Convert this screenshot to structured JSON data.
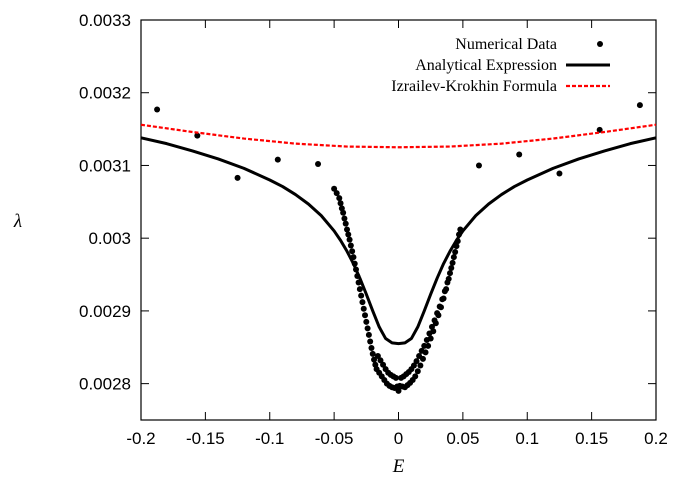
{
  "chart_data": {
    "type": "scatter",
    "title": "",
    "xlabel": "E",
    "ylabel": "λ",
    "xlim": [
      -0.2,
      0.2
    ],
    "ylim": [
      0.00275,
      0.0033
    ],
    "x_ticks": [
      -0.2,
      -0.15,
      -0.1,
      -0.05,
      0,
      0.05,
      0.1,
      0.15,
      0.2
    ],
    "x_tick_labels": [
      "-0.2",
      "-0.15",
      "-0.1",
      "-0.05",
      "0",
      "0.05",
      "0.1",
      "0.15",
      "0.2"
    ],
    "y_ticks": [
      0.0028,
      0.0029,
      0.003,
      0.0031,
      0.0032,
      0.0033
    ],
    "y_tick_labels": [
      "0.0028",
      "0.0029",
      "0.003",
      "0.0031",
      "0.0032",
      "0.0033"
    ],
    "grid": false,
    "legend_position": "top-right",
    "series": [
      {
        "name": "Numerical Data",
        "kind": "points",
        "color": "#000000",
        "x": [
          -0.1875,
          -0.15625,
          -0.125,
          -0.09375,
          -0.0625,
          -0.05,
          -0.048,
          -0.046,
          -0.045,
          -0.044,
          -0.043,
          -0.042,
          -0.041,
          -0.04,
          -0.039,
          -0.038,
          -0.037,
          -0.036,
          -0.035,
          -0.034,
          -0.033,
          -0.032,
          -0.031,
          -0.03,
          -0.029,
          -0.028,
          -0.027,
          -0.026,
          -0.025,
          -0.024,
          -0.023,
          -0.022,
          -0.021,
          -0.02,
          -0.019,
          -0.018,
          -0.017,
          -0.016,
          -0.015,
          -0.014,
          -0.013,
          -0.012,
          -0.011,
          -0.01,
          -0.009,
          -0.008,
          -0.007,
          -0.006,
          -0.005,
          -0.004,
          -0.003,
          -0.002,
          -0.001,
          0,
          0.001,
          0.002,
          0.003,
          0.004,
          0.005,
          0.006,
          0.007,
          0.008,
          0.009,
          0.01,
          0.011,
          0.012,
          0.013,
          0.014,
          0.015,
          0.016,
          0.017,
          0.018,
          0.019,
          0.02,
          0.021,
          0.022,
          0.023,
          0.024,
          0.025,
          0.026,
          0.027,
          0.028,
          0.029,
          0.03,
          0.031,
          0.032,
          0.033,
          0.034,
          0.035,
          0.036,
          0.037,
          0.038,
          0.039,
          0.04,
          0.041,
          0.042,
          0.043,
          0.044,
          0.045,
          0.046,
          0.047,
          0.048,
          0.0625,
          0.09375,
          0.125,
          0.15625,
          0.1875
        ],
        "y": [
          0.003177,
          0.003141,
          0.003083,
          0.003108,
          0.003102,
          0.003068,
          0.003062,
          0.003055,
          0.003048,
          0.003041,
          0.003035,
          0.003027,
          0.00302,
          0.003012,
          0.003005,
          0.002998,
          0.00299,
          0.002982,
          0.002974,
          0.002965,
          0.002957,
          0.002948,
          0.002939,
          0.00293,
          0.002921,
          0.002912,
          0.002903,
          0.002894,
          0.002885,
          0.002876,
          0.002867,
          0.002858,
          0.002849,
          0.002841,
          0.002833,
          0.002826,
          0.00282,
          0.002838,
          0.002815,
          0.002832,
          0.00281,
          0.002826,
          0.002805,
          0.00282,
          0.0028,
          0.002815,
          0.002797,
          0.002812,
          0.002795,
          0.00281,
          0.002794,
          0.002808,
          0.002796,
          0.00279,
          0.002797,
          0.002808,
          0.002796,
          0.00281,
          0.002795,
          0.002813,
          0.002798,
          0.002816,
          0.002801,
          0.00282,
          0.002805,
          0.002825,
          0.00281,
          0.002831,
          0.002817,
          0.002838,
          0.002825,
          0.002845,
          0.002834,
          0.002852,
          0.002843,
          0.00286,
          0.002852,
          0.002869,
          0.002862,
          0.002878,
          0.002872,
          0.002887,
          0.002883,
          0.002897,
          0.002894,
          0.002906,
          0.002905,
          0.002916,
          0.002917,
          0.002927,
          0.00293,
          0.002939,
          0.002944,
          0.002952,
          0.002959,
          0.002966,
          0.002974,
          0.002981,
          0.002989,
          0.002996,
          0.003005,
          0.003012,
          0.0031,
          0.003115,
          0.003089,
          0.003149,
          0.003183
        ]
      },
      {
        "name": "Analytical Expression",
        "kind": "line",
        "color": "#000000",
        "x": [
          -0.2,
          -0.18,
          -0.16,
          -0.14,
          -0.12,
          -0.1,
          -0.09,
          -0.08,
          -0.07,
          -0.06,
          -0.05,
          -0.045,
          -0.04,
          -0.035,
          -0.03,
          -0.025,
          -0.02,
          -0.015,
          -0.01,
          -0.005,
          0,
          0.005,
          0.01,
          0.015,
          0.02,
          0.025,
          0.03,
          0.035,
          0.04,
          0.045,
          0.05,
          0.06,
          0.07,
          0.08,
          0.09,
          0.1,
          0.12,
          0.14,
          0.16,
          0.18,
          0.2
        ],
        "y": [
          0.003138,
          0.00313,
          0.00312,
          0.003109,
          0.003096,
          0.00308,
          0.003071,
          0.00306,
          0.003047,
          0.003031,
          0.00301,
          0.002997,
          0.002982,
          0.002965,
          0.002945,
          0.002923,
          0.0029,
          0.002878,
          0.002862,
          0.002856,
          0.002855,
          0.002856,
          0.002862,
          0.002878,
          0.0029,
          0.002923,
          0.002945,
          0.002965,
          0.002982,
          0.002997,
          0.00301,
          0.003031,
          0.003047,
          0.00306,
          0.003071,
          0.00308,
          0.003096,
          0.003109,
          0.00312,
          0.00313,
          0.003138
        ]
      },
      {
        "name": "Izrailev-Krokhin Formula",
        "kind": "dashed-line",
        "color": "#ff0000",
        "x": [
          -0.2,
          -0.16,
          -0.12,
          -0.08,
          -0.04,
          0,
          0.04,
          0.08,
          0.12,
          0.16,
          0.2
        ],
        "y": [
          0.003156,
          0.003146,
          0.003137,
          0.00313,
          0.003126,
          0.003125,
          0.003126,
          0.00313,
          0.003137,
          0.003146,
          0.003156
        ]
      }
    ]
  }
}
